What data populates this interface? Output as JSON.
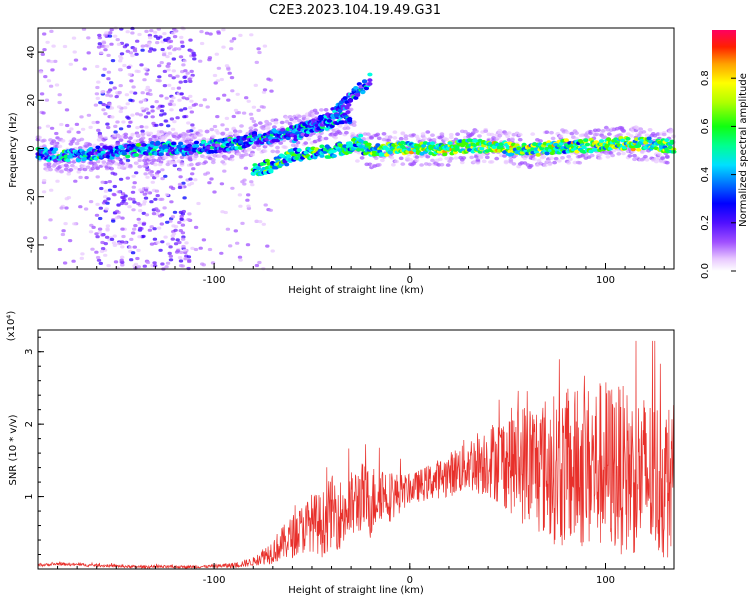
{
  "figure_title": "C2E3.2023.104.19.49.G31",
  "colors": {
    "trace": "#e8302b",
    "background": "#ffffff",
    "axis": "#000000"
  },
  "chart_data": [
    {
      "type": "heatmap",
      "title": "",
      "xlabel": "Height of straight line (km)",
      "ylabel": "Frequency (Hz)",
      "xlim": [
        -190,
        135
      ],
      "ylim": [
        -50,
        50
      ],
      "x_ticks": [
        -100,
        0,
        100
      ],
      "y_ticks": [
        -40,
        -20,
        0,
        20,
        40
      ],
      "colorbar": {
        "label": "Normalized spectral amplitude",
        "range": [
          0,
          1
        ],
        "ticks": [
          "0.0",
          "0.2",
          "0.4",
          "0.6",
          "0.8"
        ],
        "colormap": [
          "#ffffff",
          "#f0d8ff",
          "#c080ff",
          "#8a2be2",
          "#3a00ff",
          "#0000ff",
          "#0080ff",
          "#00ffff",
          "#00ff80",
          "#00ff00",
          "#c0ff00",
          "#ffff00",
          "#ffa000",
          "#ff3000",
          "#ff0050"
        ]
      },
      "main_track": [
        [
          -190,
          -2
        ],
        [
          -175,
          -3
        ],
        [
          -160,
          -2
        ],
        [
          -145,
          -1
        ],
        [
          -130,
          0
        ],
        [
          -115,
          0
        ],
        [
          -100,
          1
        ],
        [
          -90,
          2
        ],
        [
          -80,
          4
        ],
        [
          -70,
          5
        ],
        [
          -60,
          7
        ],
        [
          -50,
          9
        ],
        [
          -40,
          11
        ],
        [
          -30,
          13
        ],
        [
          -28,
          2
        ],
        [
          -20,
          -1
        ],
        [
          -10,
          0
        ],
        [
          0,
          0
        ],
        [
          10,
          0
        ],
        [
          20,
          0
        ],
        [
          30,
          1
        ],
        [
          40,
          1
        ],
        [
          50,
          0
        ],
        [
          60,
          -1
        ],
        [
          70,
          0
        ],
        [
          80,
          1
        ],
        [
          90,
          1
        ],
        [
          100,
          2
        ],
        [
          110,
          2
        ],
        [
          120,
          2
        ],
        [
          130,
          1
        ]
      ],
      "upper_branch": [
        [
          -60,
          5
        ],
        [
          -50,
          9
        ],
        [
          -45,
          11
        ],
        [
          -40,
          14
        ],
        [
          -35,
          17
        ],
        [
          -30,
          21
        ],
        [
          -25,
          25
        ],
        [
          -20,
          29
        ]
      ],
      "lower_branch": [
        [
          -80,
          -9
        ],
        [
          -70,
          -7
        ],
        [
          -60,
          -3
        ],
        [
          -50,
          -2
        ],
        [
          -40,
          -1
        ],
        [
          -30,
          1
        ],
        [
          -25,
          3
        ]
      ],
      "noise_band_x": [
        -190,
        -70
      ],
      "dense_noise_x": [
        -160,
        -110
      ]
    },
    {
      "type": "line",
      "title": "",
      "xlabel": "Height of straight line (km)",
      "ylabel": "SNR (10 * v/v)",
      "y_scale_label": "(x10⁴)",
      "xlim": [
        -190,
        135
      ],
      "ylim": [
        0,
        3.3
      ],
      "x_ticks": [
        -100,
        0,
        100
      ],
      "y_ticks": [
        1,
        2,
        3
      ],
      "series": [
        {
          "envelope": [
            [
              -190,
              0.05
            ],
            [
              -180,
              0.07
            ],
            [
              -170,
              0.06
            ],
            [
              -160,
              0.05
            ],
            [
              -150,
              0.04
            ],
            [
              -140,
              0.03
            ],
            [
              -130,
              0.03
            ],
            [
              -120,
              0.03
            ],
            [
              -110,
              0.03
            ],
            [
              -100,
              0.04
            ],
            [
              -90,
              0.05
            ],
            [
              -80,
              0.1
            ],
            [
              -75,
              0.18
            ],
            [
              -70,
              0.25
            ],
            [
              -65,
              0.35
            ],
            [
              -60,
              0.45
            ],
            [
              -55,
              0.55
            ],
            [
              -50,
              0.65
            ],
            [
              -45,
              0.6
            ],
            [
              -40,
              0.8
            ],
            [
              -35,
              0.75
            ],
            [
              -30,
              0.85
            ],
            [
              -25,
              1.0
            ],
            [
              -20,
              0.9
            ],
            [
              -15,
              1.1
            ],
            [
              -10,
              1.0
            ],
            [
              -5,
              1.05
            ],
            [
              0,
              1.1
            ],
            [
              5,
              1.15
            ],
            [
              10,
              1.2
            ],
            [
              20,
              1.3
            ],
            [
              30,
              1.45
            ],
            [
              40,
              1.5
            ],
            [
              50,
              1.5
            ],
            [
              60,
              1.45
            ],
            [
              70,
              1.4
            ],
            [
              80,
              1.35
            ],
            [
              90,
              1.4
            ],
            [
              100,
              1.45
            ],
            [
              110,
              1.35
            ],
            [
              120,
              1.3
            ],
            [
              130,
              1.2
            ]
          ],
          "spread": [
            [
              -190,
              0.02
            ],
            [
              -100,
              0.02
            ],
            [
              -80,
              0.06
            ],
            [
              -60,
              0.3
            ],
            [
              -40,
              0.5
            ],
            [
              -20,
              0.5
            ],
            [
              0,
              0.2
            ],
            [
              20,
              0.3
            ],
            [
              40,
              0.5
            ],
            [
              60,
              0.9
            ],
            [
              80,
              1.1
            ],
            [
              100,
              1.2
            ],
            [
              130,
              1.1
            ]
          ]
        }
      ]
    }
  ]
}
